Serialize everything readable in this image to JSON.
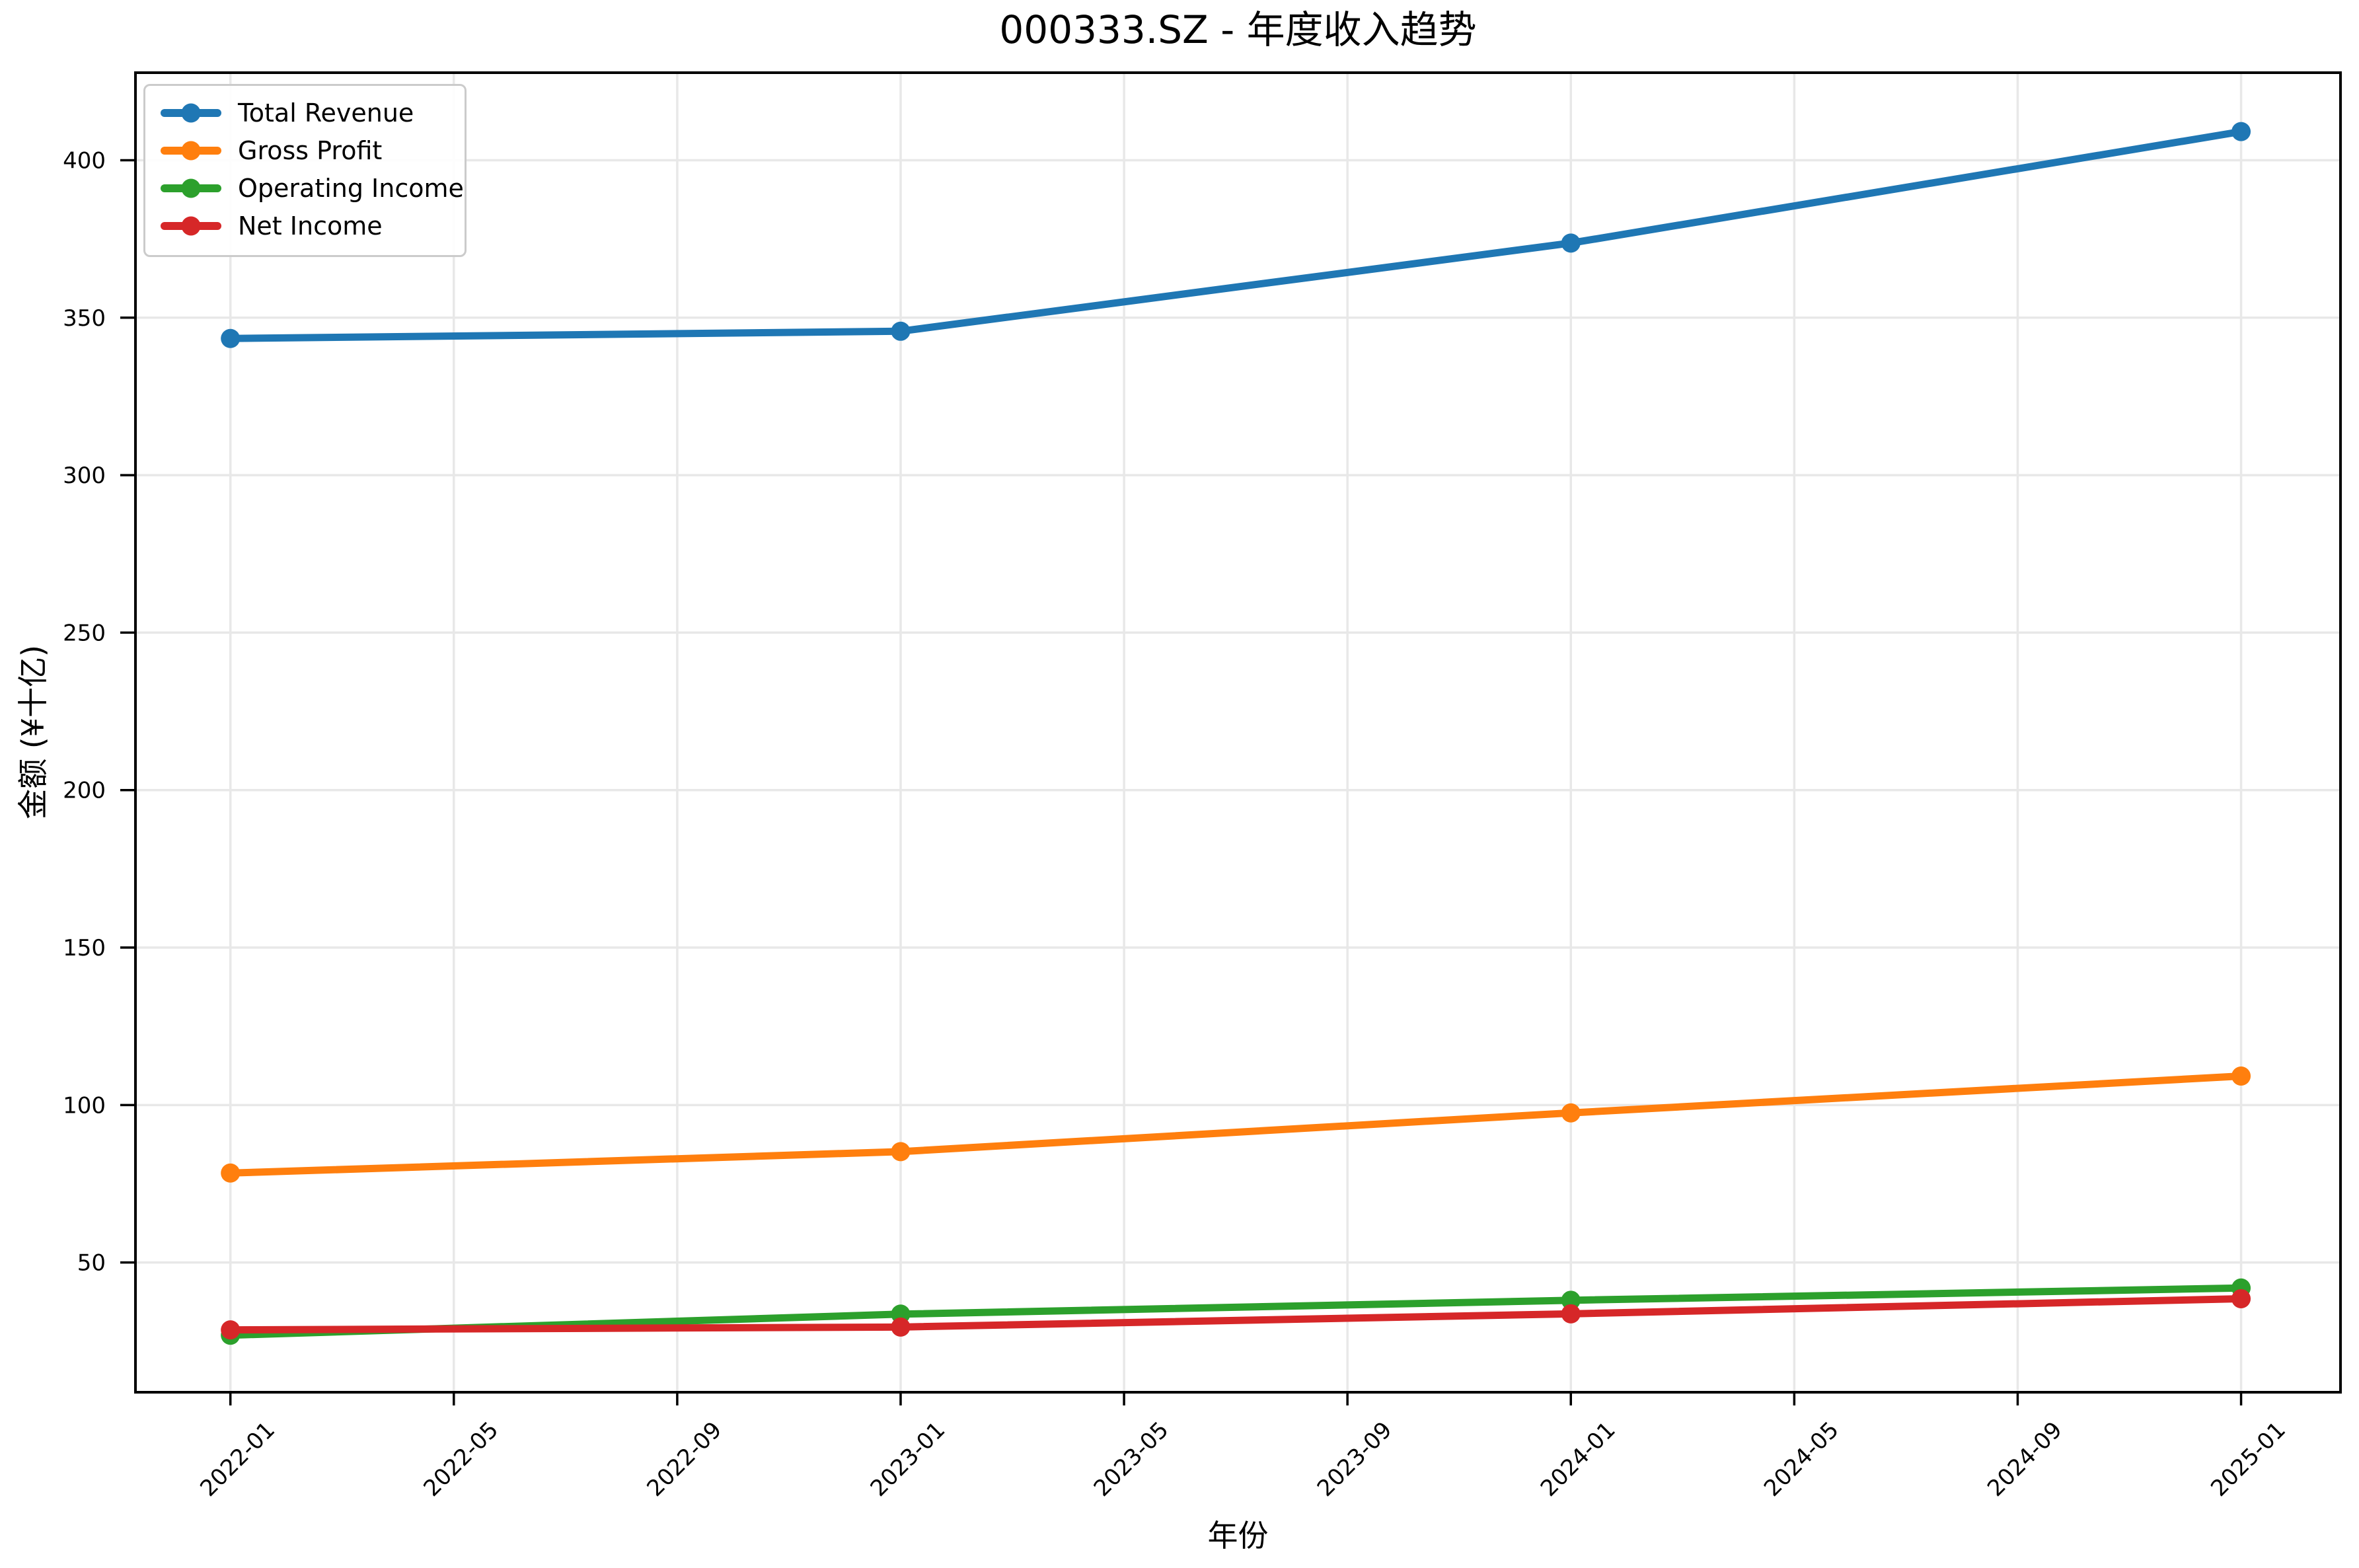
{
  "chart_data": {
    "type": "line",
    "title": "000333.SZ - 年度收入趋势",
    "xlabel": "年份",
    "ylabel": "金额 (¥十亿)",
    "legend_position": "upper-left",
    "grid": true,
    "grid_color": "#e8e8e8",
    "spine_color": "#000000",
    "x_point_labels": [
      "2022-01",
      "2023-01",
      "2024-01",
      "2025-01"
    ],
    "x_months": [
      0,
      12,
      24,
      36
    ],
    "x_tick_months": [
      0,
      4,
      8,
      12,
      16,
      20,
      24,
      28,
      32,
      36
    ],
    "x_tick_labels": [
      "2022-01",
      "2022-05",
      "2022-09",
      "2023-01",
      "2023-05",
      "2023-09",
      "2024-01",
      "2024-05",
      "2024-09",
      "2025-01"
    ],
    "yticks": [
      50,
      100,
      150,
      200,
      250,
      300,
      350,
      400
    ],
    "ytick_labels": [
      "50",
      "100",
      "150",
      "200",
      "250",
      "300",
      "350",
      "400"
    ],
    "ylim": [
      8.8,
      427.8
    ],
    "xlim_months": [
      -1.7,
      37.78
    ],
    "series": [
      {
        "name": "Total Revenue",
        "color": "#1f77b4",
        "values": [
          343.4,
          345.7,
          373.7,
          409.1
        ]
      },
      {
        "name": "Gross Profit",
        "color": "#ff7f0e",
        "values": [
          78.4,
          85.2,
          97.5,
          109.2
        ]
      },
      {
        "name": "Operating Income",
        "color": "#2ca02c",
        "values": [
          26.9,
          33.6,
          38.0,
          41.9
        ]
      },
      {
        "name": "Net Income",
        "color": "#d62728",
        "values": [
          28.6,
          29.5,
          33.7,
          38.5
        ]
      }
    ]
  }
}
